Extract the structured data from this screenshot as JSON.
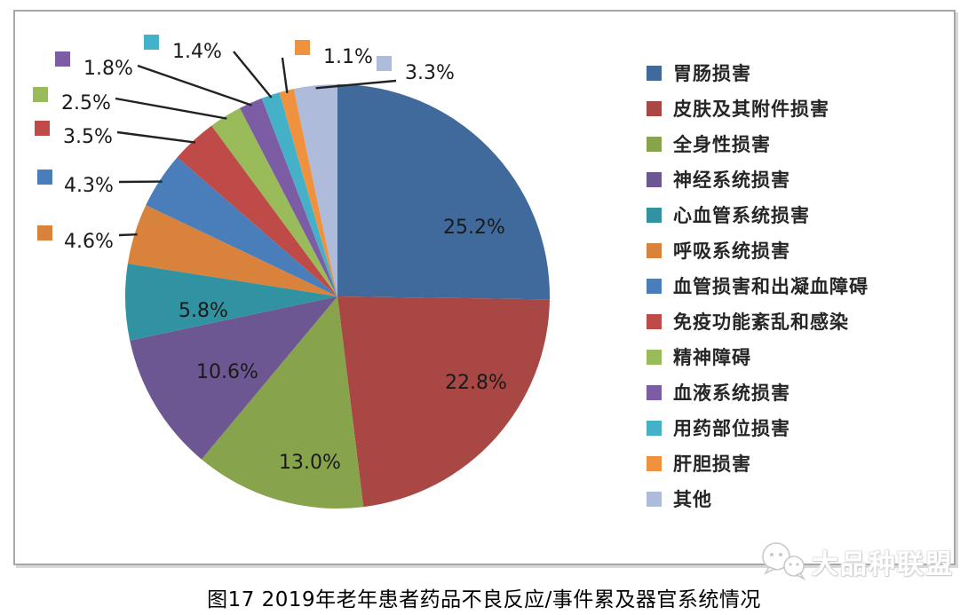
{
  "chart_data": {
    "type": "pie",
    "title": "图17 2019年老年患者药品不良反应/事件累及器官系统情况",
    "legend_position": "right",
    "grid": false,
    "categories": [
      "胃肠损害",
      "皮肤及其附件损害",
      "全身性损害",
      "神经系统损害",
      "心血管系统损害",
      "呼吸系统损害",
      "血管损害和出凝血障碍",
      "免疫功能紊乱和感染",
      "精神障碍",
      "血液系统损害",
      "用药部位损害",
      "肝胆损害",
      "其他"
    ],
    "values": [
      25.2,
      22.8,
      13.0,
      10.6,
      5.8,
      4.6,
      4.3,
      3.5,
      2.5,
      1.8,
      1.4,
      1.1,
      3.3
    ],
    "labels": [
      "25.2%",
      "22.8%",
      "13.0%",
      "10.6%",
      "5.8%",
      "4.6%",
      "4.3%",
      "3.5%",
      "2.5%",
      "1.8%",
      "1.4%",
      "1.1%",
      "3.3%"
    ],
    "colors": [
      "#40699C",
      "#A84743",
      "#87A34C",
      "#6D5792",
      "#3193A2",
      "#D8823C",
      "#4A7EBB",
      "#BE4B48",
      "#9ABB59",
      "#7B5CA5",
      "#45B1C9",
      "#F0913D",
      "#AEBBDB"
    ]
  },
  "caption": {
    "text": "图17 2019年老年患者药品不良反应/事件累及器官系统情况"
  },
  "watermark": {
    "text": "大品种联盟"
  },
  "label_color": "#1a1a1a",
  "leader_color": "#222222"
}
